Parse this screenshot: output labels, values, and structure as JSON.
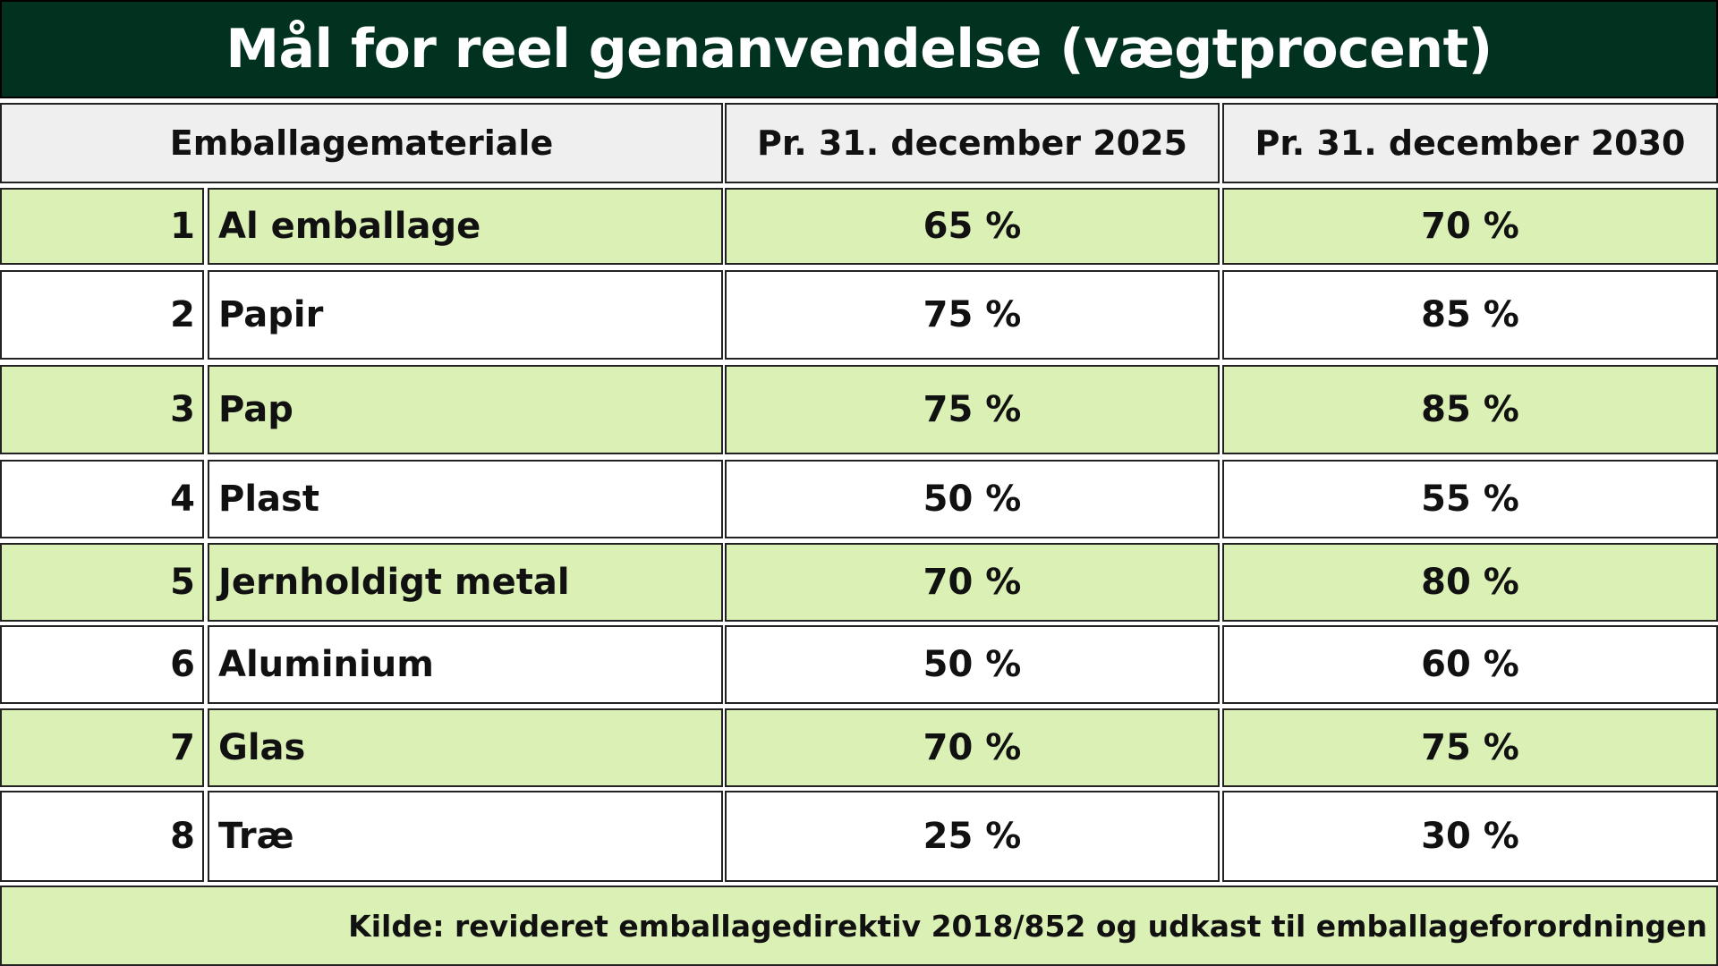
{
  "title": "Mål for reel genanvendelse (vægtprocent)",
  "header": {
    "material": "Emballagemateriale",
    "col_2025": "Pr. 31. december 2025",
    "col_2030": "Pr. 31. december 2030"
  },
  "rows": [
    {
      "num": "1",
      "material": "Al emballage",
      "v2025": "65 %",
      "v2030": "70 %"
    },
    {
      "num": "2",
      "material": "Papir",
      "v2025": "75 %",
      "v2030": "85 %"
    },
    {
      "num": "3",
      "material": "Pap",
      "v2025": "75 %",
      "v2030": "85 %"
    },
    {
      "num": "4",
      "material": "Plast",
      "v2025": "50 %",
      "v2030": "55 %"
    },
    {
      "num": "5",
      "material": "Jernholdigt metal",
      "v2025": "70 %",
      "v2030": "80 %"
    },
    {
      "num": "6",
      "material": "Aluminium",
      "v2025": "50 %",
      "v2030": "60 %"
    },
    {
      "num": "7",
      "material": "Glas",
      "v2025": "70 %",
      "v2030": "75 %"
    },
    {
      "num": "8",
      "material": "Træ",
      "v2025": "25 %",
      "v2030": "30 %"
    }
  ],
  "source": "Kilde:  revideret emballagedirektiv 2018/852 og udkast til emballageforordningen",
  "colors": {
    "title_bg": "#013220",
    "row_green": "#daf0b4",
    "header_bg": "#efefef"
  }
}
